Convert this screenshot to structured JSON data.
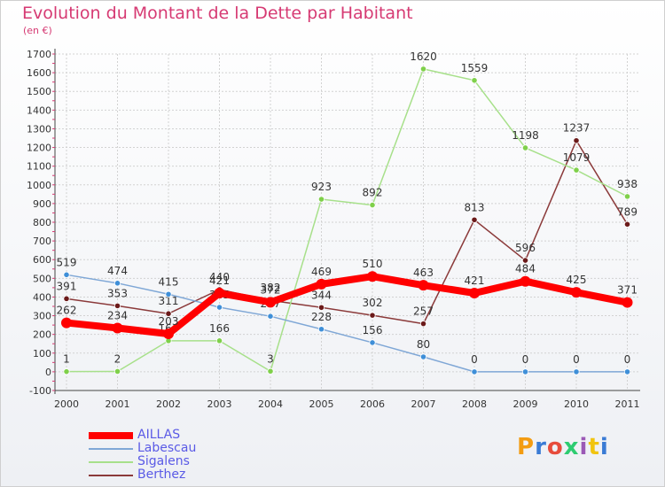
{
  "title": "Evolution du Montant de la Dette par Habitant",
  "subtitle": "(en €)",
  "logo_text": "Proxiti",
  "chart_data": {
    "type": "line",
    "categories": [
      "2000",
      "2001",
      "2002",
      "2003",
      "2004",
      "2005",
      "2006",
      "2007",
      "2008",
      "2009",
      "2010",
      "2011"
    ],
    "ylim": [
      -100,
      1700
    ],
    "yticks": [
      -100,
      0,
      100,
      200,
      300,
      400,
      500,
      600,
      700,
      800,
      900,
      1000,
      1100,
      1200,
      1300,
      1400,
      1500,
      1600,
      1700
    ],
    "grid": true,
    "legend_position": "bottom-left",
    "series": [
      {
        "name": "AILLAS",
        "color": "#ff0000",
        "point_color": "#ff0000",
        "values": [
          262,
          234,
          203,
          421,
          372,
          469,
          510,
          463,
          421,
          484,
          425,
          371
        ]
      },
      {
        "name": "Labescau",
        "color": "#7fa7d6",
        "point_color": "#3f8fd8",
        "values": [
          519,
          474,
          415,
          345,
          297,
          228,
          156,
          80,
          0,
          0,
          0,
          0
        ]
      },
      {
        "name": "Sigalens",
        "color": "#a7e08a",
        "point_color": "#7fd04a",
        "values": [
          1,
          2,
          166,
          166,
          3,
          923,
          892,
          1620,
          1559,
          1198,
          1079,
          938
        ]
      },
      {
        "name": "Berthez",
        "color": "#8b3a3a",
        "point_color": "#6b1a1a",
        "values": [
          391,
          353,
          311,
          440,
          382,
          344,
          302,
          257,
          813,
          596,
          1237,
          789
        ]
      }
    ]
  }
}
